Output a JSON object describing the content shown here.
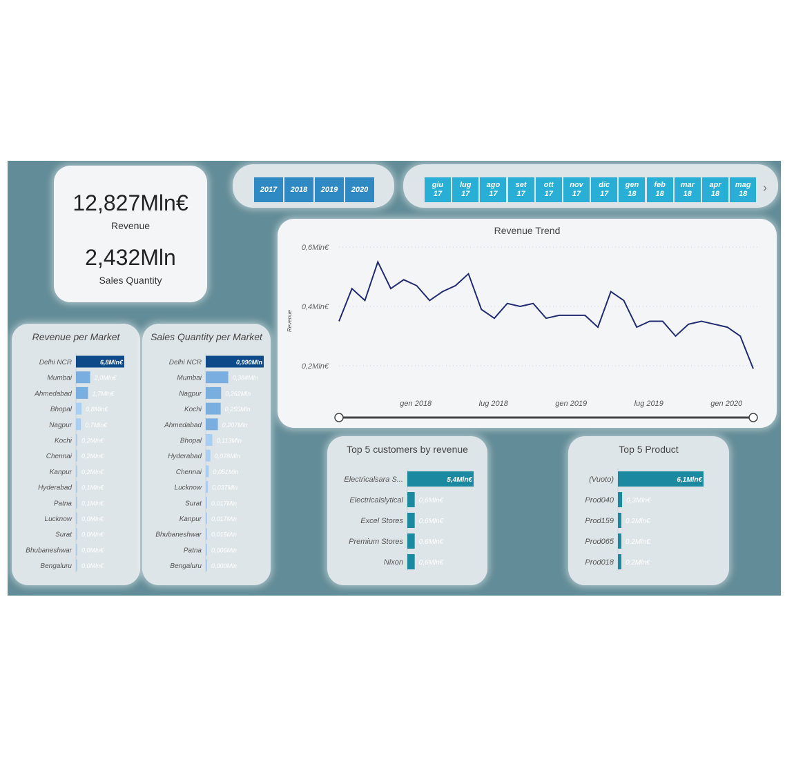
{
  "kpi": {
    "revenue_value": "12,827Mln€",
    "revenue_label": "Revenue",
    "quantity_value": "2,432Mln",
    "quantity_label": "Sales Quantity"
  },
  "years": [
    "2017",
    "2018",
    "2019",
    "2020"
  ],
  "months": [
    {
      "m": "giu",
      "y": "17"
    },
    {
      "m": "lug",
      "y": "17"
    },
    {
      "m": "ago",
      "y": "17"
    },
    {
      "m": "set",
      "y": "17"
    },
    {
      "m": "ott",
      "y": "17"
    },
    {
      "m": "nov",
      "y": "17"
    },
    {
      "m": "dic",
      "y": "17"
    },
    {
      "m": "gen",
      "y": "18"
    },
    {
      "m": "feb",
      "y": "18"
    },
    {
      "m": "mar",
      "y": "18"
    },
    {
      "m": "apr",
      "y": "18"
    },
    {
      "m": "mag",
      "y": "18"
    }
  ],
  "colors": {
    "dashboard_bg": "#628c97",
    "top_bar": "#0d4a8a",
    "bar_mid": "#79aee0",
    "bar_light": "#a9cef4",
    "trend_line": "#1f2a70",
    "teal_bar": "#1b8aa0",
    "year_button": "#2f8ac4",
    "month_button": "#29aed5"
  },
  "chart_data": [
    {
      "type": "line",
      "title": "Revenue Trend",
      "ylabel": "Revenue",
      "yticks": [
        "0,6Mln€",
        "0,4Mln€",
        "0,2Mln€"
      ],
      "ytick_values": [
        0.6,
        0.4,
        0.2
      ],
      "xticks": [
        "gen 2018",
        "lug 2018",
        "gen 2019",
        "lug 2019",
        "gen 2020"
      ],
      "ylim": [
        0.2,
        0.6
      ],
      "values": [
        0.35,
        0.46,
        0.42,
        0.55,
        0.46,
        0.49,
        0.47,
        0.42,
        0.45,
        0.47,
        0.51,
        0.39,
        0.36,
        0.41,
        0.4,
        0.41,
        0.36,
        0.37,
        0.37,
        0.37,
        0.33,
        0.45,
        0.42,
        0.33,
        0.35,
        0.35,
        0.3,
        0.34,
        0.35,
        0.34,
        0.33,
        0.3,
        0.19
      ]
    },
    {
      "type": "bar",
      "title": "Revenue per Market",
      "categories": [
        "Delhi NCR",
        "Mumbai",
        "Ahmedabad",
        "Bhopal",
        "Nagpur",
        "Kochi",
        "Chennai",
        "Kanpur",
        "Hyderabad",
        "Patna",
        "Lucknow",
        "Surat",
        "Bhubaneshwar",
        "Bengaluru"
      ],
      "values": [
        6.8,
        2.0,
        1.7,
        0.8,
        0.7,
        0.2,
        0.2,
        0.2,
        0.1,
        0.1,
        0.0,
        0.0,
        0.0,
        0.0
      ],
      "labels": [
        "6,8Mln€",
        "2,0Mln€",
        "1,7Mln€",
        "0,8Mln€",
        "0,7Mln€",
        "0,2Mln€",
        "0,2Mln€",
        "0,2Mln€",
        "0,1Mln€",
        "0,1Mln€",
        "0,0Mln€",
        "0,0Mln€",
        "0,0Mln€",
        "0,0Mln€"
      ]
    },
    {
      "type": "bar",
      "title": "Sales Quantity per Market",
      "categories": [
        "Delhi NCR",
        "Mumbai",
        "Nagpur",
        "Kochi",
        "Ahmedabad",
        "Bhopal",
        "Hyderabad",
        "Chennai",
        "Lucknow",
        "Surat",
        "Kanpur",
        "Bhubaneshwar",
        "Patna",
        "Bengaluru"
      ],
      "values": [
        0.99,
        0.384,
        0.262,
        0.255,
        0.207,
        0.113,
        0.078,
        0.051,
        0.037,
        0.017,
        0.017,
        0.015,
        0.006,
        0.0
      ],
      "labels": [
        "0,990Mln",
        "0,384Mln",
        "0,262Mln",
        "0,255Mln",
        "0,207Mln",
        "0,113Mln",
        "0,078Mln",
        "0,051Mln",
        "0,037Mln",
        "0,017Mln",
        "0,017Mln",
        "0,015Mln",
        "0,006Mln",
        "0,000Mln"
      ]
    },
    {
      "type": "bar",
      "title": "Top 5 customers by revenue",
      "categories": [
        "Electricalsara S...",
        "Electricalslytical",
        "Excel Stores",
        "Premium Stores",
        "Nixon"
      ],
      "values": [
        5.4,
        0.6,
        0.6,
        0.6,
        0.6
      ],
      "labels": [
        "5,4Mln€",
        "0,6Mln€",
        "0,6Mln€",
        "0,6Mln€",
        "0,6Mln€"
      ]
    },
    {
      "type": "bar",
      "title": "Top 5 Product",
      "categories": [
        "(Vuoto)",
        "Prod040",
        "Prod159",
        "Prod065",
        "Prod018"
      ],
      "values": [
        6.1,
        0.3,
        0.2,
        0.2,
        0.2
      ],
      "labels": [
        "6,1Mln€",
        "0,3Mln€",
        "0,2Mln€",
        "0,2Mln€",
        "0,2Mln€"
      ]
    }
  ]
}
